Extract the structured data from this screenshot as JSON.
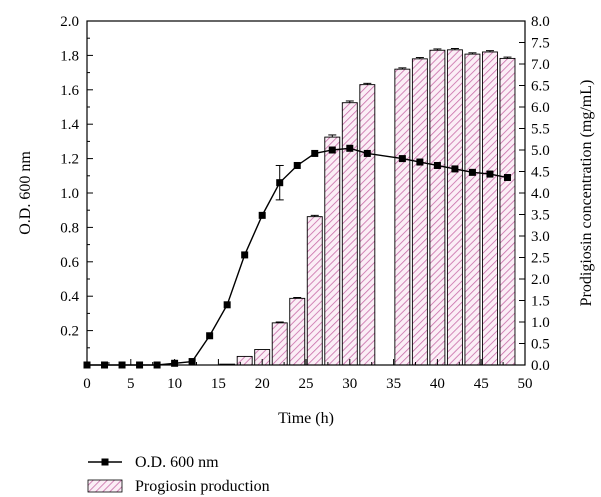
{
  "chart_data": {
    "type": "bar",
    "xlabel": "Time (h)",
    "ylabel_left": "O.D. 600 nm",
    "ylabel_right": "Prodigiosin concentration (mg/mL)",
    "xlim": [
      0,
      50
    ],
    "ylim_left": [
      0,
      2.0
    ],
    "ylim_right": [
      0,
      8.0
    ],
    "x_ticks": [
      0,
      5,
      10,
      15,
      20,
      25,
      30,
      35,
      40,
      45,
      50
    ],
    "y_left_ticks": [
      0,
      0.2,
      0.4,
      0.6,
      0.8,
      1.0,
      1.2,
      1.4,
      1.6,
      1.8,
      2.0
    ],
    "y_left_tick_labels": [
      "0",
      "0.2",
      "0.4",
      "0.6",
      "0.8",
      "1.0",
      "1.2",
      "1.4",
      "1.6",
      "1.8",
      "2.0"
    ],
    "y_right_ticks": [
      0,
      0.5,
      1.0,
      1.5,
      2.0,
      2.5,
      3.0,
      3.5,
      4.0,
      4.5,
      5.0,
      5.5,
      6.0,
      6.5,
      7.0,
      7.5,
      8.0
    ],
    "y_right_tick_labels": [
      "0.0",
      "0.5",
      "1.0",
      "1.5",
      "2.0",
      "2.5",
      "3.0",
      "3.5",
      "4.0",
      "4.5",
      "5.0",
      "5.5",
      "6.0",
      "6.5",
      "7.0",
      "7.5",
      "8.0"
    ],
    "grid": false,
    "legend_position": "bottom-left",
    "series": [
      {
        "name": "O.D. 600 nm",
        "type": "line",
        "axis": "left",
        "color": "#000000",
        "x": [
          0,
          2,
          4,
          6,
          8,
          10,
          12,
          14,
          16,
          18,
          20,
          22,
          24,
          26,
          28,
          30,
          32,
          36,
          38,
          40,
          42,
          44,
          46,
          48
        ],
        "values": [
          0.0,
          0.0,
          0.0,
          0.0,
          0.0,
          0.01,
          0.02,
          0.17,
          0.35,
          0.64,
          0.87,
          1.06,
          1.16,
          1.23,
          1.25,
          1.26,
          1.23,
          1.2,
          1.18,
          1.16,
          1.14,
          1.12,
          1.11,
          1.09
        ],
        "error": [
          0,
          0,
          0,
          0,
          0,
          0,
          0,
          0,
          0,
          0,
          0,
          0.1,
          0,
          0,
          0,
          0,
          0,
          0,
          0,
          0,
          0,
          0,
          0,
          0
        ]
      },
      {
        "name": "Progiosin production",
        "type": "bar",
        "axis": "right",
        "color": "#c86ca8",
        "x": [
          16,
          18,
          20,
          22,
          24,
          26,
          28,
          30,
          32,
          36,
          38,
          40,
          42,
          44,
          46,
          48
        ],
        "values": [
          0.02,
          0.2,
          0.36,
          0.98,
          1.55,
          3.45,
          5.3,
          6.1,
          6.52,
          6.88,
          7.12,
          7.32,
          7.33,
          7.23,
          7.28,
          7.13
        ],
        "error": [
          0.0,
          0.0,
          0.0,
          0.02,
          0.02,
          0.03,
          0.05,
          0.04,
          0.03,
          0.03,
          0.03,
          0.03,
          0.03,
          0.03,
          0.03,
          0.03
        ]
      }
    ]
  },
  "legend": {
    "line_label": "O.D. 600 nm",
    "bar_label": "Progiosin production"
  },
  "style": {
    "bar_stroke": "#000000",
    "hatch_color": "#c86ca8",
    "bar_fill": "#fbeef6",
    "line_color": "#000000"
  }
}
